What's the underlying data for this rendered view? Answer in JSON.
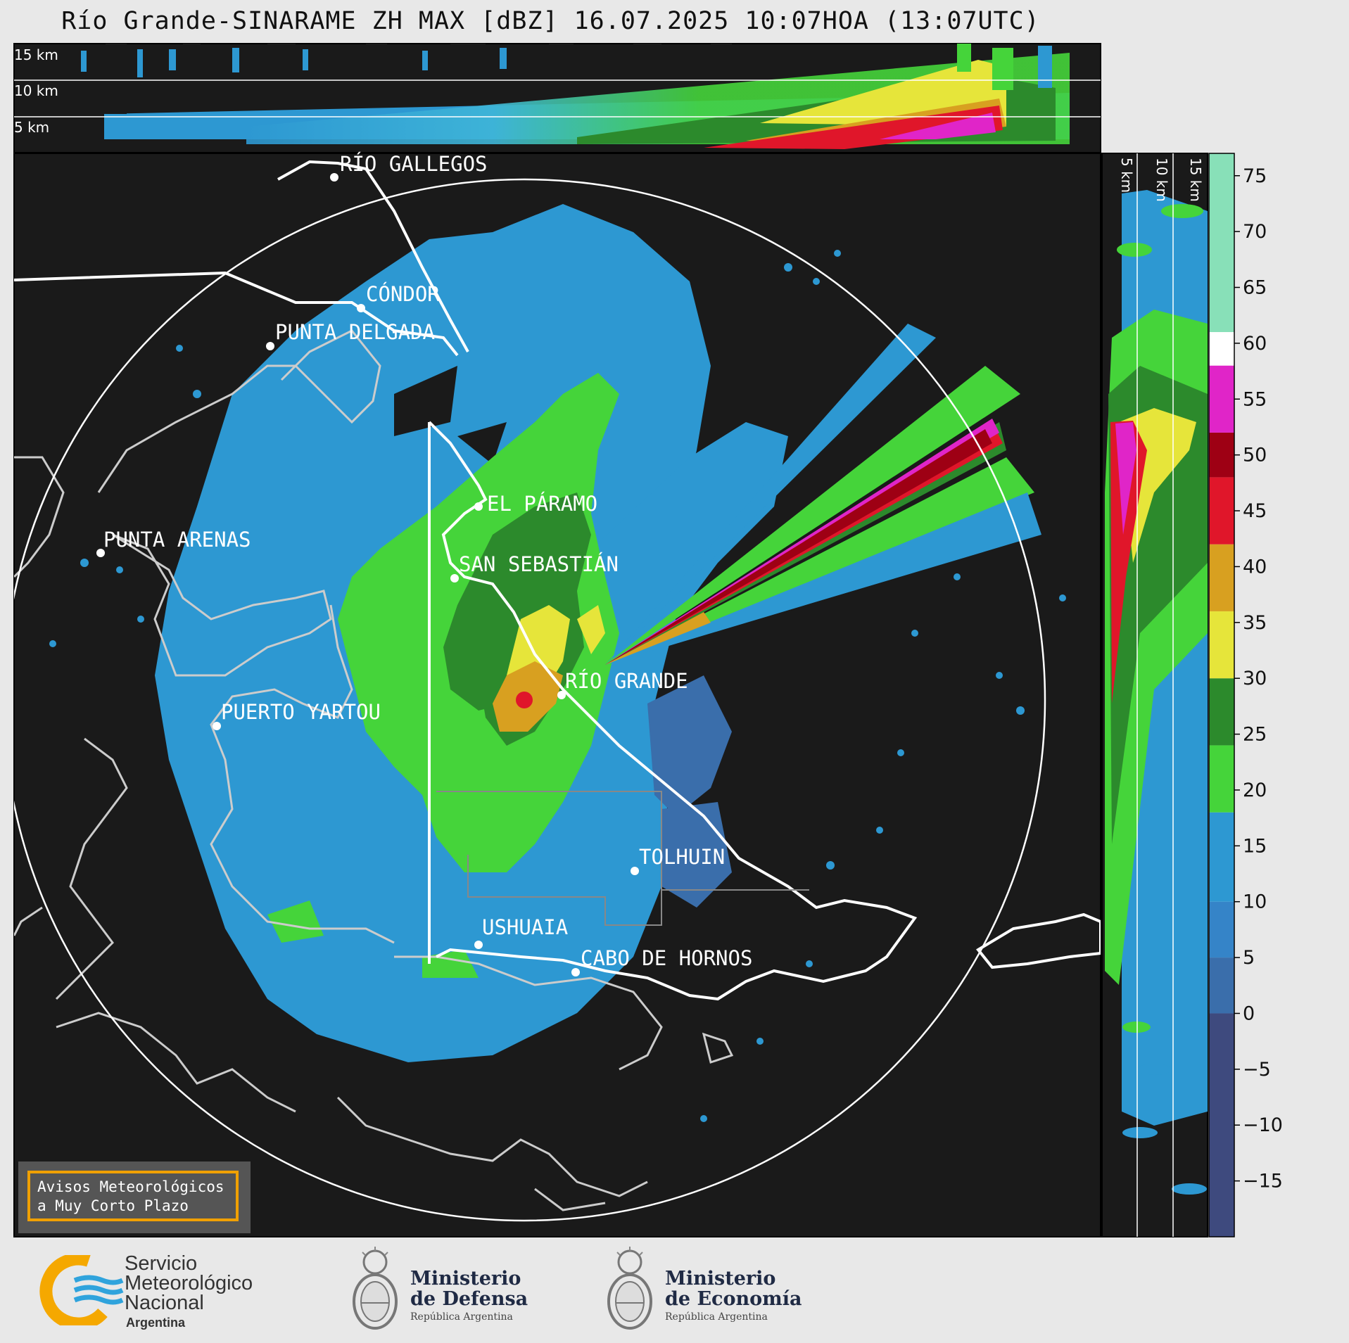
{
  "title": "Río Grande-SINARAME ZH MAX [dBZ] 16.07.2025 10:07HOA (13:07UTC)",
  "top_panel": {
    "height_labels": [
      "15 km",
      "10 km",
      "5 km"
    ]
  },
  "side_panel": {
    "height_labels": [
      "5 km",
      "10 km",
      "15 km"
    ]
  },
  "places": [
    {
      "name": "RÍO GALLEGOS"
    },
    {
      "name": "CÓNDOR"
    },
    {
      "name": "PUNTA DELGADA"
    },
    {
      "name": "EL PÁRAMO"
    },
    {
      "name": "PUNTA ARENAS"
    },
    {
      "name": "SAN SEBASTIÁN"
    },
    {
      "name": "RÍO GRANDE"
    },
    {
      "name": "PUERTO YARTOU"
    },
    {
      "name": "TOLHUIN"
    },
    {
      "name": "USHUAIA"
    },
    {
      "name": "CABO DE HORNOS"
    }
  ],
  "colorbar": {
    "unit": "dBZ",
    "ticks": [
      "75",
      "70",
      "65",
      "60",
      "55",
      "50",
      "45",
      "40",
      "35",
      "30",
      "25",
      "20",
      "15",
      "10",
      "5",
      "0",
      "−5",
      "−10",
      "−15"
    ],
    "range": [
      -20,
      77
    ],
    "bands": [
      {
        "from": -20,
        "to": 0,
        "color": "#3e4a7e"
      },
      {
        "from": 0,
        "to": 5,
        "color": "#3a6eab"
      },
      {
        "from": 5,
        "to": 10,
        "color": "#3584c8"
      },
      {
        "from": 10,
        "to": 18,
        "color": "#2d98d2"
      },
      {
        "from": 18,
        "to": 24,
        "color": "#45d43a"
      },
      {
        "from": 24,
        "to": 30,
        "color": "#2c8a2c"
      },
      {
        "from": 30,
        "to": 36,
        "color": "#e6e53a"
      },
      {
        "from": 36,
        "to": 42,
        "color": "#d8a020"
      },
      {
        "from": 42,
        "to": 48,
        "color": "#e0162a"
      },
      {
        "from": 48,
        "to": 52,
        "color": "#9e0014"
      },
      {
        "from": 52,
        "to": 58,
        "color": "#e025c8"
      },
      {
        "from": 58,
        "to": 61,
        "color": "#ffffff"
      },
      {
        "from": 61,
        "to": 77,
        "color": "#88e0b8"
      }
    ]
  },
  "notice": {
    "line1": "Avisos Meteorológicos",
    "line2": "a Muy Corto Plazo"
  },
  "logos": {
    "smn": {
      "line1": "Servicio",
      "line2": "Meteorológico",
      "line3": "Nacional",
      "line4": "Argentina"
    },
    "defensa": {
      "line1": "Ministerio",
      "line2": "de Defensa",
      "line3": "República Argentina"
    },
    "economia": {
      "line1": "Ministerio",
      "line2": "de Economía",
      "line3": "República Argentina"
    }
  },
  "colors": {
    "background": "#1a1a1a",
    "page": "#e8e8e8",
    "coast": "#cccccc",
    "border": "#ffffff"
  }
}
